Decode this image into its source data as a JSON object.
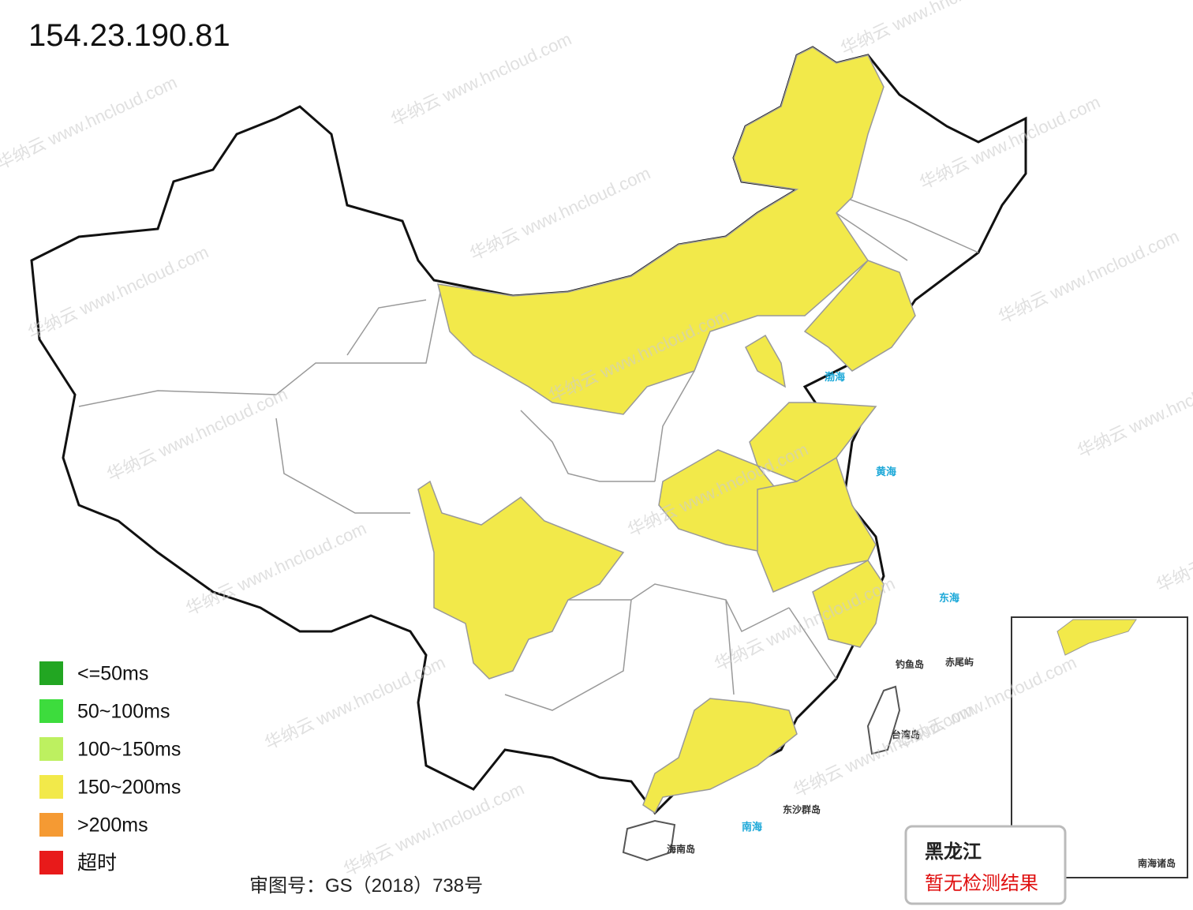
{
  "title": "154.23.190.81",
  "legend": [
    {
      "label": "<=50ms",
      "color": "#22a622"
    },
    {
      "label": "50~100ms",
      "color": "#3ddc3d"
    },
    {
      "label": "100~150ms",
      "color": "#bdf060"
    },
    {
      "label": "150~200ms",
      "color": "#f2e94a"
    },
    {
      "label": ">200ms",
      "color": "#f59a33"
    },
    {
      "label": "超时",
      "color": "#e81a1a"
    }
  ],
  "tooltip": {
    "region": "黑龙江",
    "status": "暂无检测结果"
  },
  "approval": "审图号：GS（2018）738号",
  "watermark": "华纳云 www.hncloud.com",
  "map_labels": [
    "渤海",
    "黄海",
    "东海",
    "南海",
    "台湾岛",
    "海南岛",
    "东沙群岛",
    "钓鱼岛",
    "赤尾屿",
    "南海诸岛"
  ]
}
